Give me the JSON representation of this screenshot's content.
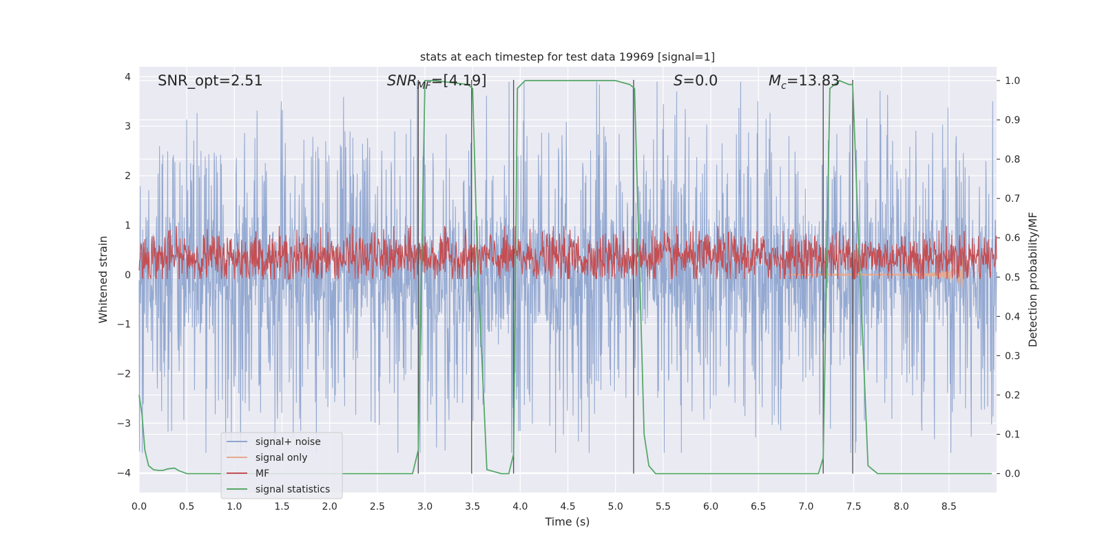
{
  "chart_data": {
    "type": "line",
    "title": "stats at each timestep for test data 19969 [signal=1]",
    "xlabel": "Time (s)",
    "ylabel": "Whitened strain",
    "y2label": "Detection probability/MF",
    "xlim": [
      0,
      9.0
    ],
    "ylim": [
      -4.4,
      4.2
    ],
    "y2lim": [
      -0.048,
      1.035
    ],
    "xticks": [
      "0.0",
      "0.5",
      "1.0",
      "1.5",
      "2.0",
      "2.5",
      "3.0",
      "3.5",
      "4.0",
      "4.5",
      "5.0",
      "5.5",
      "6.0",
      "6.5",
      "7.0",
      "7.5",
      "8.0",
      "8.5"
    ],
    "yticks": [
      "4",
      "3",
      "2",
      "1",
      "0",
      "−1",
      "−2",
      "−3",
      "−4"
    ],
    "y2ticks": [
      "1.0",
      "0.9",
      "0.8",
      "0.7",
      "0.6",
      "0.5",
      "0.4",
      "0.3",
      "0.2",
      "0.1",
      "0.0"
    ],
    "grid": true,
    "legend_position": "lower-left",
    "annotations": {
      "snr_opt": "SNR_opt=2.51",
      "snr_mf_main": "SNR",
      "snr_mf_sub": "MF",
      "snr_mf_value": "=[4.19]",
      "s_main": "S",
      "s_value": "=0.0",
      "mc_main": "M",
      "mc_sub": "c",
      "mc_value": "=13.83"
    },
    "vertical_lines_x": [
      2.93,
      3.49,
      3.93,
      5.19,
      7.18,
      7.49
    ],
    "series": [
      {
        "name": "signal+ noise",
        "color": "#8fa5cf",
        "kind": "noise",
        "amplitude_range": [
          -3.6,
          3.9
        ]
      },
      {
        "name": "signal only",
        "color": "#e8a98c",
        "kind": "chirp",
        "peak_time": 8.65,
        "peak_amplitude": -0.4
      },
      {
        "name": "MF",
        "color": "#c44e52",
        "kind": "mf",
        "range_right_axis": [
          0.5,
          0.6
        ]
      },
      {
        "name": "signal statistics",
        "color": "#55a868",
        "kind": "stat",
        "x": [
          0.0,
          0.03,
          0.06,
          0.1,
          0.15,
          0.2,
          0.25,
          0.3,
          0.37,
          0.42,
          0.5,
          0.6,
          1.0,
          2.0,
          2.87,
          2.93,
          3.0,
          3.1,
          3.45,
          3.5,
          3.55,
          3.65,
          3.8,
          3.88,
          3.93,
          3.97,
          4.05,
          4.2,
          5.0,
          5.15,
          5.2,
          5.3,
          5.35,
          5.42,
          5.5,
          6.0,
          7.0,
          7.13,
          7.18,
          7.25,
          7.35,
          7.45,
          7.49,
          7.55,
          7.65,
          7.75,
          8.0,
          8.95
        ],
        "y": [
          0.2,
          0.15,
          0.06,
          0.02,
          0.01,
          0.008,
          0.008,
          0.012,
          0.014,
          0.007,
          0.0,
          0.0,
          0.0,
          0.0,
          0.0,
          0.06,
          1.0,
          1.0,
          0.99,
          0.98,
          0.55,
          0.01,
          0.0,
          0.0,
          0.05,
          0.98,
          1.0,
          1.0,
          1.0,
          0.99,
          0.98,
          0.1,
          0.02,
          0.0,
          0.0,
          0.0,
          0.0,
          0.0,
          0.04,
          0.98,
          1.0,
          0.99,
          0.99,
          0.6,
          0.02,
          0.0,
          0.0,
          0.0
        ]
      }
    ]
  }
}
